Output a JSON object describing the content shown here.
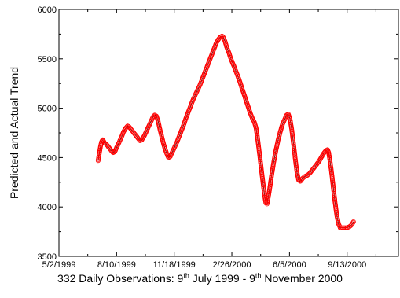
{
  "chart_data": {
    "type": "scatter",
    "ylabel": "Predicted and Actual Trend",
    "xlabel_parts": {
      "prefix": "332 Daily Observations: 9",
      "sup1": "th",
      "middle": " July 1999 - 9",
      "sup2": "th",
      "suffix": " November 2000"
    },
    "ylim": [
      3500,
      6000
    ],
    "y_ticks": [
      "3500",
      "4000",
      "4500",
      "5000",
      "5500",
      "6000"
    ],
    "x_range": [
      "1999-05-02",
      "2000-12-11"
    ],
    "x_ticks": [
      {
        "date": "1999-05-02",
        "label": "5/2/1999"
      },
      {
        "date": "1999-08-10",
        "label": "8/10/1999"
      },
      {
        "date": "1999-11-18",
        "label": "11/18/1999"
      },
      {
        "date": "2000-02-26",
        "label": "2/26/2000"
      },
      {
        "date": "2000-06-05",
        "label": "6/5/2000"
      },
      {
        "date": "2000-09-13",
        "label": "9/13/2000"
      }
    ],
    "grid": false,
    "marker_color": "#ff0000",
    "line_color": "#000000",
    "series": [
      {
        "points": [
          [
            "1999-07-09",
            4470
          ],
          [
            "1999-07-11",
            4540
          ],
          [
            "1999-07-13",
            4610
          ],
          [
            "1999-07-15",
            4660
          ],
          [
            "1999-07-17",
            4680
          ],
          [
            "1999-07-20",
            4650
          ],
          [
            "1999-07-24",
            4630
          ],
          [
            "1999-07-28",
            4600
          ],
          [
            "1999-08-01",
            4570
          ],
          [
            "1999-08-04",
            4550
          ],
          [
            "1999-08-07",
            4560
          ],
          [
            "1999-08-10",
            4600
          ],
          [
            "1999-08-14",
            4650
          ],
          [
            "1999-08-18",
            4700
          ],
          [
            "1999-08-22",
            4760
          ],
          [
            "1999-08-26",
            4800
          ],
          [
            "1999-08-29",
            4820
          ],
          [
            "1999-09-01",
            4810
          ],
          [
            "1999-09-05",
            4780
          ],
          [
            "1999-09-09",
            4750
          ],
          [
            "1999-09-13",
            4720
          ],
          [
            "1999-09-17",
            4690
          ],
          [
            "1999-09-20",
            4670
          ],
          [
            "1999-09-23",
            4680
          ],
          [
            "1999-09-27",
            4720
          ],
          [
            "1999-10-01",
            4770
          ],
          [
            "1999-10-05",
            4820
          ],
          [
            "1999-10-09",
            4870
          ],
          [
            "1999-10-12",
            4910
          ],
          [
            "1999-10-15",
            4930
          ],
          [
            "1999-10-18",
            4920
          ],
          [
            "1999-10-21",
            4870
          ],
          [
            "1999-10-24",
            4790
          ],
          [
            "1999-10-27",
            4720
          ],
          [
            "1999-10-30",
            4650
          ],
          [
            "1999-11-02",
            4590
          ],
          [
            "1999-11-05",
            4540
          ],
          [
            "1999-11-08",
            4500
          ],
          [
            "1999-11-11",
            4510
          ],
          [
            "1999-11-15",
            4560
          ],
          [
            "1999-11-19",
            4610
          ],
          [
            "1999-11-23",
            4660
          ],
          [
            "1999-11-27",
            4720
          ],
          [
            "1999-12-01",
            4780
          ],
          [
            "1999-12-05",
            4840
          ],
          [
            "1999-12-09",
            4910
          ],
          [
            "1999-12-13",
            4970
          ],
          [
            "1999-12-17",
            5030
          ],
          [
            "1999-12-21",
            5090
          ],
          [
            "1999-12-25",
            5140
          ],
          [
            "1999-12-29",
            5190
          ],
          [
            "2000-01-02",
            5240
          ],
          [
            "2000-01-06",
            5300
          ],
          [
            "2000-01-10",
            5360
          ],
          [
            "2000-01-14",
            5420
          ],
          [
            "2000-01-18",
            5480
          ],
          [
            "2000-01-22",
            5540
          ],
          [
            "2000-01-26",
            5600
          ],
          [
            "2000-01-30",
            5660
          ],
          [
            "2000-02-03",
            5700
          ],
          [
            "2000-02-06",
            5720
          ],
          [
            "2000-02-09",
            5730
          ],
          [
            "2000-02-11",
            5720
          ],
          [
            "2000-02-14",
            5680
          ],
          [
            "2000-02-17",
            5620
          ],
          [
            "2000-02-21",
            5560
          ],
          [
            "2000-02-25",
            5490
          ],
          [
            "2000-03-01",
            5420
          ],
          [
            "2000-03-05",
            5360
          ],
          [
            "2000-03-09",
            5300
          ],
          [
            "2000-03-13",
            5230
          ],
          [
            "2000-03-17",
            5160
          ],
          [
            "2000-03-21",
            5090
          ],
          [
            "2000-03-25",
            5020
          ],
          [
            "2000-03-29",
            4950
          ],
          [
            "2000-04-02",
            4890
          ],
          [
            "2000-04-05",
            4860
          ],
          [
            "2000-04-08",
            4800
          ],
          [
            "2000-04-11",
            4680
          ],
          [
            "2000-04-14",
            4540
          ],
          [
            "2000-04-17",
            4390
          ],
          [
            "2000-04-20",
            4250
          ],
          [
            "2000-04-23",
            4110
          ],
          [
            "2000-04-25",
            4040
          ],
          [
            "2000-04-27",
            4030
          ],
          [
            "2000-04-29",
            4090
          ],
          [
            "2000-05-02",
            4200
          ],
          [
            "2000-05-05",
            4320
          ],
          [
            "2000-05-08",
            4430
          ],
          [
            "2000-05-12",
            4560
          ],
          [
            "2000-05-16",
            4670
          ],
          [
            "2000-05-20",
            4760
          ],
          [
            "2000-05-24",
            4840
          ],
          [
            "2000-05-28",
            4890
          ],
          [
            "2000-05-31",
            4930
          ],
          [
            "2000-06-03",
            4940
          ],
          [
            "2000-06-06",
            4890
          ],
          [
            "2000-06-09",
            4780
          ],
          [
            "2000-06-12",
            4640
          ],
          [
            "2000-06-15",
            4490
          ],
          [
            "2000-06-18",
            4350
          ],
          [
            "2000-06-21",
            4270
          ],
          [
            "2000-06-24",
            4260
          ],
          [
            "2000-06-28",
            4290
          ],
          [
            "2000-07-02",
            4310
          ],
          [
            "2000-07-06",
            4320
          ],
          [
            "2000-07-10",
            4340
          ],
          [
            "2000-07-14",
            4370
          ],
          [
            "2000-07-18",
            4400
          ],
          [
            "2000-07-22",
            4430
          ],
          [
            "2000-07-26",
            4460
          ],
          [
            "2000-07-30",
            4500
          ],
          [
            "2000-08-03",
            4540
          ],
          [
            "2000-08-07",
            4570
          ],
          [
            "2000-08-10",
            4580
          ],
          [
            "2000-08-12",
            4550
          ],
          [
            "2000-08-14",
            4480
          ],
          [
            "2000-08-17",
            4350
          ],
          [
            "2000-08-20",
            4200
          ],
          [
            "2000-08-23",
            4050
          ],
          [
            "2000-08-26",
            3920
          ],
          [
            "2000-08-29",
            3830
          ],
          [
            "2000-09-01",
            3790
          ],
          [
            "2000-09-05",
            3790
          ],
          [
            "2000-09-09",
            3790
          ],
          [
            "2000-09-13",
            3790
          ],
          [
            "2000-09-17",
            3800
          ],
          [
            "2000-09-21",
            3820
          ],
          [
            "2000-09-24",
            3850
          ]
        ]
      }
    ]
  }
}
